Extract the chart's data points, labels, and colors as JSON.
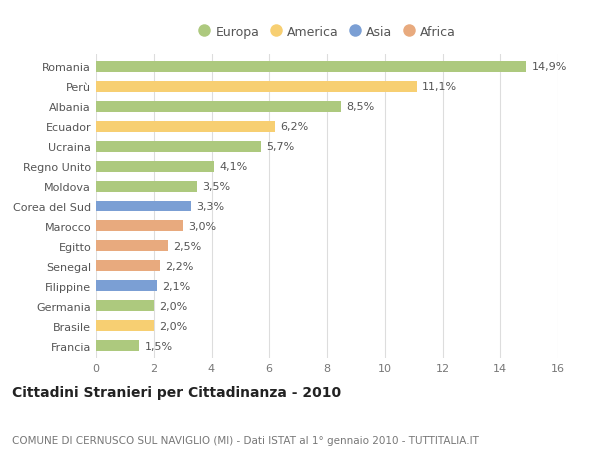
{
  "categories": [
    "Francia",
    "Brasile",
    "Germania",
    "Filippine",
    "Senegal",
    "Egitto",
    "Marocco",
    "Corea del Sud",
    "Moldova",
    "Regno Unito",
    "Ucraina",
    "Ecuador",
    "Albania",
    "Perù",
    "Romania"
  ],
  "values": [
    1.5,
    2.0,
    2.0,
    2.1,
    2.2,
    2.5,
    3.0,
    3.3,
    3.5,
    4.1,
    5.7,
    6.2,
    8.5,
    11.1,
    14.9
  ],
  "labels": [
    "1,5%",
    "2,0%",
    "2,0%",
    "2,1%",
    "2,2%",
    "2,5%",
    "3,0%",
    "3,3%",
    "3,5%",
    "4,1%",
    "5,7%",
    "6,2%",
    "8,5%",
    "11,1%",
    "14,9%"
  ],
  "continent_colors": {
    "Europa": "#adc97e",
    "America": "#f7cf72",
    "Asia": "#7b9fd4",
    "Africa": "#e8aa7e"
  },
  "bar_colors": [
    "#adc97e",
    "#f7cf72",
    "#adc97e",
    "#7b9fd4",
    "#e8aa7e",
    "#e8aa7e",
    "#e8aa7e",
    "#7b9fd4",
    "#adc97e",
    "#adc97e",
    "#adc97e",
    "#f7cf72",
    "#adc97e",
    "#f7cf72",
    "#adc97e"
  ],
  "xlim": [
    0,
    16
  ],
  "xticks": [
    0,
    2,
    4,
    6,
    8,
    10,
    12,
    14,
    16
  ],
  "title": "Cittadini Stranieri per Cittadinanza - 2010",
  "subtitle": "COMUNE DI CERNUSCO SUL NAVIGLIO (MI) - Dati ISTAT al 1° gennaio 2010 - TUTTITALIA.IT",
  "legend_order": [
    "Europa",
    "America",
    "Asia",
    "Africa"
  ],
  "background_color": "#ffffff",
  "grid_color": "#dddddd",
  "bar_height": 0.55,
  "label_fontsize": 8.0,
  "tick_fontsize": 8.0,
  "title_fontsize": 10.0,
  "subtitle_fontsize": 7.5
}
